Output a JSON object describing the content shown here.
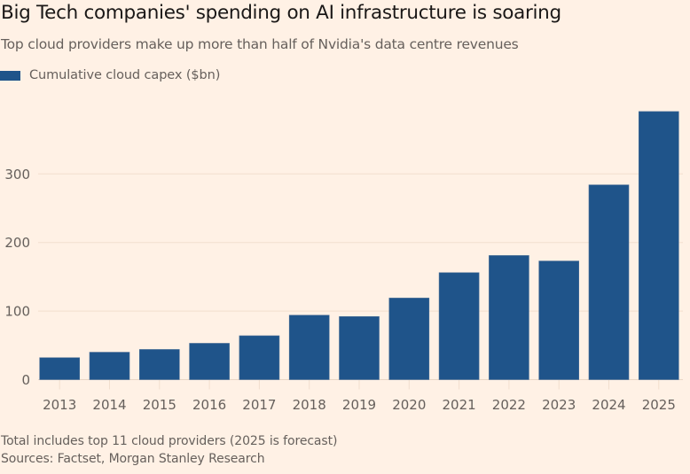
{
  "title": "Big Tech companies' spending on AI infrastructure is soaring",
  "subtitle": "Top cloud providers make up more than half of Nvidia's data centre revenues",
  "legend": {
    "items": [
      {
        "label": "Cumulative cloud capex ($bn)",
        "color": "#1f548a"
      }
    ]
  },
  "footnotes": {
    "note": "Total includes top 11 cloud providers (2025 is forecast)",
    "source": "Sources: Factset, Morgan Stanley Research"
  },
  "colors": {
    "background": "#fff1e5",
    "bar": "#1f548a",
    "gridline": "#f2dfce",
    "text_muted": "#66605c",
    "text_title": "#1a1817"
  },
  "chart_data": {
    "type": "bar",
    "title": "Big Tech companies' spending on AI infrastructure is soaring",
    "subtitle": "Top cloud providers make up more than half of Nvidia's data centre revenues",
    "xlabel": "",
    "ylabel": "",
    "categories": [
      "2013",
      "2014",
      "2015",
      "2016",
      "2017",
      "2018",
      "2019",
      "2020",
      "2021",
      "2022",
      "2023",
      "2024",
      "2025"
    ],
    "series": [
      {
        "name": "Cumulative cloud capex ($bn)",
        "values": [
          32,
          40,
          44,
          53,
          64,
          94,
          92,
          119,
          156,
          181,
          173,
          284,
          391
        ]
      }
    ],
    "ylim": [
      0,
      400
    ],
    "yticks": [
      0,
      100,
      200,
      300
    ],
    "ytick_labels": [
      "0",
      "100",
      "200",
      "300"
    ],
    "grid": true,
    "legend_position": "top-left"
  }
}
